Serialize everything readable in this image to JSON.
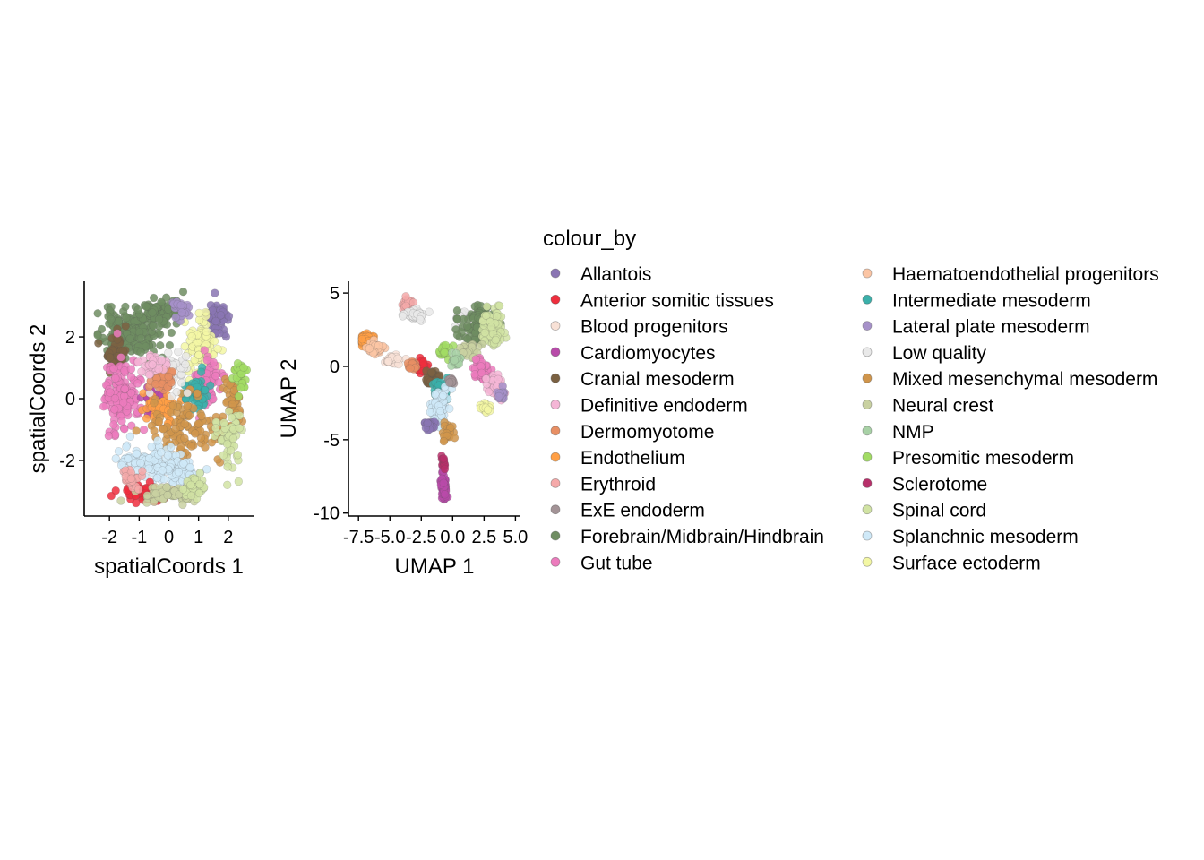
{
  "legend": {
    "title": "colour_by",
    "entries": [
      {
        "label": "Allantois",
        "color": "#8a75b3"
      },
      {
        "label": "Anterior somitic tissues",
        "color": "#ef2e3d"
      },
      {
        "label": "Blood progenitors",
        "color": "#f8e1d6"
      },
      {
        "label": "Cardiomyocytes",
        "color": "#b84aa9"
      },
      {
        "label": "Cranial mesoderm",
        "color": "#7b6142"
      },
      {
        "label": "Definitive endoderm",
        "color": "#f4b6d6"
      },
      {
        "label": "Dermomyotome",
        "color": "#e88f64"
      },
      {
        "label": "Endothelium",
        "color": "#ff9f45"
      },
      {
        "label": "Erythroid",
        "color": "#f5a9a9"
      },
      {
        "label": "ExE endoderm",
        "color": "#a39396"
      },
      {
        "label": "Forebrain/Midbrain/Hindbrain",
        "color": "#6f8d62"
      },
      {
        "label": "Gut tube",
        "color": "#ec7bbd"
      },
      {
        "label": "Haematoendothelial progenitors",
        "color": "#fbc5a4"
      },
      {
        "label": "Intermediate mesoderm",
        "color": "#3bb0aa"
      },
      {
        "label": "Lateral plate mesoderm",
        "color": "#a691c9"
      },
      {
        "label": "Low quality",
        "color": "#e9e9e9"
      },
      {
        "label": "Mixed mesenchymal mesoderm",
        "color": "#d0954b"
      },
      {
        "label": "Neural crest",
        "color": "#c9d1a1"
      },
      {
        "label": "NMP",
        "color": "#a8d1a6"
      },
      {
        "label": "Presomitic mesoderm",
        "color": "#a2dc64"
      },
      {
        "label": "Sclerotome",
        "color": "#b7306a"
      },
      {
        "label": "Spinal cord",
        "color": "#d1e3a3"
      },
      {
        "label": "Splanchnic mesoderm",
        "color": "#cfe9f8"
      },
      {
        "label": "Surface ectoderm",
        "color": "#f3f7a4"
      }
    ]
  },
  "chart_data": [
    {
      "type": "scatter",
      "xlabel": "spatialCoords 1",
      "ylabel": "spatialCoords 2",
      "xlim": [
        -2.85,
        2.85
      ],
      "ylim": [
        -3.8,
        3.8
      ],
      "xticks": [
        -2,
        -1,
        0,
        1,
        2
      ],
      "xtick_labels": [
        "-2",
        "-1",
        "0",
        "1",
        "2"
      ],
      "yticks": [
        -2,
        0,
        2
      ],
      "ytick_labels": [
        "-2",
        "0",
        "2"
      ],
      "grid": false,
      "clusters": [
        {
          "category": "Forebrain/Midbrain/Hindbrain",
          "cx": -1.3,
          "cy": 2.1,
          "sx": 0.9,
          "sy": 0.7,
          "n": 170
        },
        {
          "category": "Forebrain/Midbrain/Hindbrain",
          "cx": -0.3,
          "cy": 2.8,
          "sx": 0.6,
          "sy": 0.4,
          "n": 90
        },
        {
          "category": "Cranial mesoderm",
          "cx": -1.8,
          "cy": 1.4,
          "sx": 0.3,
          "sy": 0.5,
          "n": 60
        },
        {
          "category": "Allantois",
          "cx": 1.6,
          "cy": 2.6,
          "sx": 0.3,
          "sy": 0.5,
          "n": 60
        },
        {
          "category": "Surface ectoderm",
          "cx": 1.1,
          "cy": 1.8,
          "sx": 0.5,
          "sy": 0.9,
          "n": 90
        },
        {
          "category": "Gut tube",
          "cx": -1.6,
          "cy": 0.2,
          "sx": 0.6,
          "sy": 1.1,
          "n": 140
        },
        {
          "category": "Gut tube",
          "cx": 1.3,
          "cy": 0.5,
          "sx": 0.4,
          "sy": 0.8,
          "n": 60
        },
        {
          "category": "Cardiomyocytes",
          "cx": -0.5,
          "cy": 0.0,
          "sx": 0.3,
          "sy": 0.4,
          "n": 60
        },
        {
          "category": "Endothelium",
          "cx": -0.2,
          "cy": -0.3,
          "sx": 0.5,
          "sy": 0.5,
          "n": 55
        },
        {
          "category": "Intermediate mesoderm",
          "cx": 0.9,
          "cy": 0.2,
          "sx": 0.4,
          "sy": 0.5,
          "n": 50
        },
        {
          "category": "Mixed mesenchymal mesoderm",
          "cx": 0.5,
          "cy": -0.9,
          "sx": 1.3,
          "sy": 0.9,
          "n": 120
        },
        {
          "category": "Mixed mesenchymal mesoderm",
          "cx": 2.2,
          "cy": 0.0,
          "sx": 0.25,
          "sy": 0.8,
          "n": 40
        },
        {
          "category": "Presomitic mesoderm",
          "cx": 2.4,
          "cy": 0.8,
          "sx": 0.2,
          "sy": 0.4,
          "n": 30
        },
        {
          "category": "Spinal cord",
          "cx": 2.0,
          "cy": -1.3,
          "sx": 0.4,
          "sy": 0.9,
          "n": 60
        },
        {
          "category": "Splanchnic mesoderm",
          "cx": -0.7,
          "cy": -2.0,
          "sx": 1.0,
          "sy": 0.5,
          "n": 90
        },
        {
          "category": "Splanchnic mesoderm",
          "cx": 0.3,
          "cy": -2.4,
          "sx": 0.7,
          "sy": 0.4,
          "n": 50
        },
        {
          "category": "Anterior somitic tissues",
          "cx": -0.8,
          "cy": -3.1,
          "sx": 0.9,
          "sy": 0.25,
          "n": 70
        },
        {
          "category": "Neural crest",
          "cx": 0.2,
          "cy": -3.1,
          "sx": 1.0,
          "sy": 0.3,
          "n": 70
        },
        {
          "category": "Low quality",
          "cx": 0.1,
          "cy": 0.9,
          "sx": 0.6,
          "sy": 0.6,
          "n": 50
        },
        {
          "category": "Dermomyotome",
          "cx": -0.2,
          "cy": 0.6,
          "sx": 0.4,
          "sy": 0.3,
          "n": 40
        },
        {
          "category": "Definitive endoderm",
          "cx": -0.6,
          "cy": 1.1,
          "sx": 0.4,
          "sy": 0.4,
          "n": 30
        },
        {
          "category": "Lateral plate mesoderm",
          "cx": 0.4,
          "cy": 2.9,
          "sx": 0.3,
          "sy": 0.3,
          "n": 25
        },
        {
          "category": "Erythroid",
          "cx": -1.2,
          "cy": -2.6,
          "sx": 0.4,
          "sy": 0.3,
          "n": 25
        },
        {
          "category": "Spinal cord",
          "cx": 0.9,
          "cy": -2.8,
          "sx": 0.4,
          "sy": 0.4,
          "n": 30
        }
      ]
    },
    {
      "type": "scatter",
      "xlabel": "UMAP 1",
      "ylabel": "UMAP 2",
      "xlim": [
        -8.3,
        5.4
      ],
      "ylim": [
        -10.2,
        5.8
      ],
      "xticks": [
        -7.5,
        -5.0,
        -2.5,
        0.0,
        2.5,
        5.0
      ],
      "xtick_labels": [
        "-7.5",
        "-5.0",
        "-2.5",
        "0.0",
        "2.5",
        "5.0"
      ],
      "yticks": [
        -10,
        -5,
        0,
        5
      ],
      "ytick_labels": [
        "-10",
        "-5",
        "0",
        "5"
      ],
      "grid": false,
      "clusters": [
        {
          "category": "Endothelium",
          "cx": -7.0,
          "cy": 1.8,
          "sx": 0.6,
          "sy": 0.35,
          "n": 80
        },
        {
          "category": "Haematoendothelial progenitors",
          "cx": -6.2,
          "cy": 1.2,
          "sx": 0.6,
          "sy": 0.4,
          "n": 40
        },
        {
          "category": "Erythroid",
          "cx": -3.6,
          "cy": 4.3,
          "sx": 0.4,
          "sy": 0.4,
          "n": 25
        },
        {
          "category": "Low quality",
          "cx": -3.0,
          "cy": 3.5,
          "sx": 0.7,
          "sy": 0.3,
          "n": 40
        },
        {
          "category": "Blood progenitors",
          "cx": -4.8,
          "cy": 0.4,
          "sx": 0.6,
          "sy": 0.3,
          "n": 30
        },
        {
          "category": "Anterior somitic tissues",
          "cx": -2.5,
          "cy": -0.1,
          "sx": 0.4,
          "sy": 0.4,
          "n": 40
        },
        {
          "category": "Cranial mesoderm",
          "cx": -1.6,
          "cy": -0.8,
          "sx": 0.5,
          "sy": 0.5,
          "n": 40
        },
        {
          "category": "Dermomyotome",
          "cx": -3.2,
          "cy": 0.1,
          "sx": 0.5,
          "sy": 0.3,
          "n": 20
        },
        {
          "category": "Intermediate mesoderm",
          "cx": -1.0,
          "cy": -1.8,
          "sx": 0.5,
          "sy": 0.8,
          "n": 40
        },
        {
          "category": "Splanchnic mesoderm",
          "cx": -1.0,
          "cy": -2.8,
          "sx": 0.6,
          "sy": 1.0,
          "n": 70
        },
        {
          "category": "Allantois",
          "cx": -1.8,
          "cy": -4.0,
          "sx": 0.4,
          "sy": 0.4,
          "n": 30
        },
        {
          "category": "Mixed mesenchymal mesoderm",
          "cx": -0.3,
          "cy": -4.5,
          "sx": 0.5,
          "sy": 0.5,
          "n": 20
        },
        {
          "category": "Cardiomyocytes",
          "cx": -0.7,
          "cy": -8.3,
          "sx": 0.2,
          "sy": 0.9,
          "n": 60
        },
        {
          "category": "Sclerotome",
          "cx": -0.7,
          "cy": -6.5,
          "sx": 0.15,
          "sy": 0.5,
          "n": 12
        },
        {
          "category": "Low quality",
          "cx": 0.8,
          "cy": 3.3,
          "sx": 0.5,
          "sy": 0.6,
          "n": 30
        },
        {
          "category": "Forebrain/Midbrain/Hindbrain",
          "cx": 2.0,
          "cy": 2.8,
          "sx": 1.2,
          "sy": 1.2,
          "n": 110
        },
        {
          "category": "Spinal cord",
          "cx": 3.2,
          "cy": 2.8,
          "sx": 0.8,
          "sy": 1.1,
          "n": 110
        },
        {
          "category": "Neural crest",
          "cx": 1.3,
          "cy": 1.1,
          "sx": 0.7,
          "sy": 0.5,
          "n": 40
        },
        {
          "category": "Presomitic mesoderm",
          "cx": -0.6,
          "cy": 1.1,
          "sx": 0.5,
          "sy": 0.4,
          "n": 20
        },
        {
          "category": "NMP",
          "cx": 0.3,
          "cy": 0.4,
          "sx": 0.4,
          "sy": 0.4,
          "n": 20
        },
        {
          "category": "Gut tube",
          "cx": 2.3,
          "cy": -0.2,
          "sx": 0.6,
          "sy": 0.8,
          "n": 50
        },
        {
          "category": "Definitive endoderm",
          "cx": 3.4,
          "cy": -1.4,
          "sx": 0.6,
          "sy": 0.7,
          "n": 50
        },
        {
          "category": "Surface ectoderm",
          "cx": 2.6,
          "cy": -2.8,
          "sx": 0.4,
          "sy": 0.3,
          "n": 20
        },
        {
          "category": "Lateral plate mesoderm",
          "cx": 3.8,
          "cy": -1.9,
          "sx": 0.3,
          "sy": 0.4,
          "n": 15
        },
        {
          "category": "ExE endoderm",
          "cx": -0.1,
          "cy": -1.0,
          "sx": 0.3,
          "sy": 0.3,
          "n": 15
        }
      ]
    }
  ]
}
